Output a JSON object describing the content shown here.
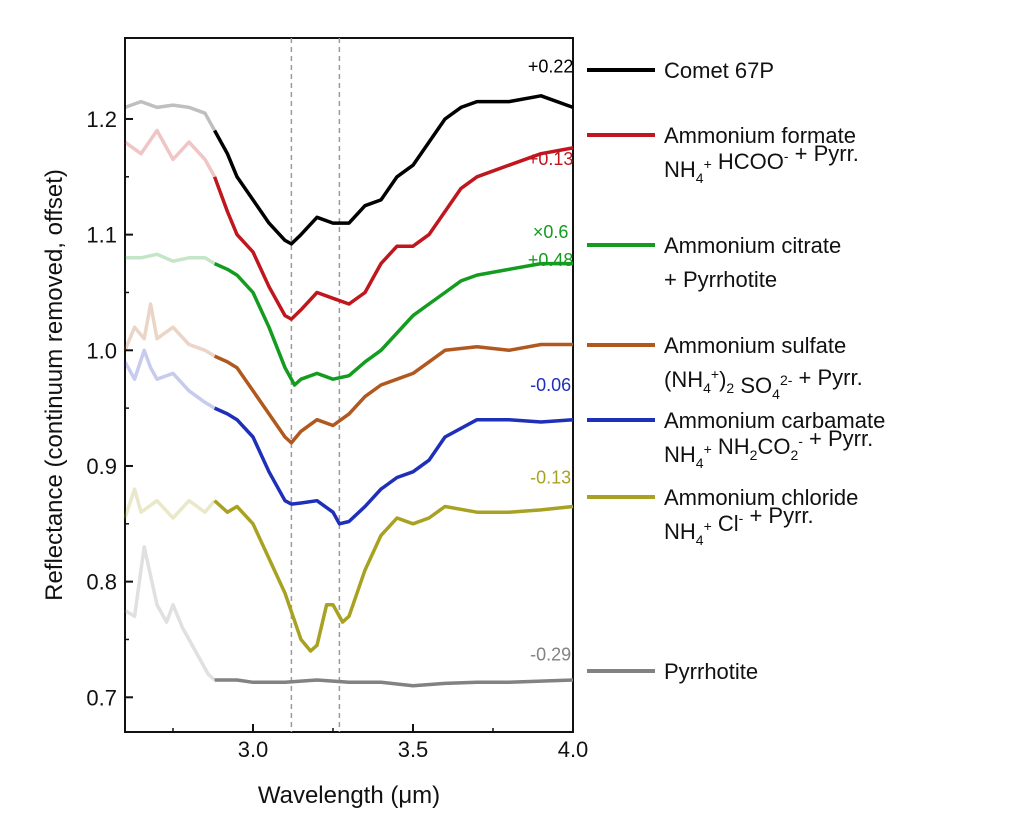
{
  "chart_data": {
    "type": "line",
    "xlabel": "Wavelength (μm)",
    "ylabel": "Reflectance (continuum removed, offset)",
    "xlim": [
      2.6,
      4.0
    ],
    "ylim": [
      0.67,
      1.27
    ],
    "x_ticks": [
      3.0,
      3.5,
      4.0
    ],
    "x_tick_labels": [
      "3.0",
      "3.5",
      "4.0"
    ],
    "y_ticks": [
      0.7,
      0.8,
      0.9,
      1.0,
      1.1,
      1.2
    ],
    "y_tick_labels": [
      "0.7",
      "0.8",
      "0.9",
      "1.0",
      "1.1",
      "1.2"
    ],
    "grid": false,
    "reference_lines_x": [
      3.12,
      3.27
    ],
    "legend_position": "right",
    "series": [
      {
        "name": "Comet 67P",
        "color": "#000000",
        "offset_label": "+0.22",
        "offset_label_xy": [
          3.93,
          1.24
        ],
        "faded_until": 2.88,
        "points": [
          [
            2.6,
            1.21
          ],
          [
            2.65,
            1.215
          ],
          [
            2.7,
            1.21
          ],
          [
            2.75,
            1.212
          ],
          [
            2.8,
            1.21
          ],
          [
            2.85,
            1.205
          ],
          [
            2.88,
            1.19
          ],
          [
            2.92,
            1.17
          ],
          [
            2.95,
            1.15
          ],
          [
            3.0,
            1.13
          ],
          [
            3.05,
            1.11
          ],
          [
            3.1,
            1.095
          ],
          [
            3.12,
            1.092
          ],
          [
            3.15,
            1.1
          ],
          [
            3.2,
            1.115
          ],
          [
            3.25,
            1.11
          ],
          [
            3.3,
            1.11
          ],
          [
            3.35,
            1.125
          ],
          [
            3.4,
            1.13
          ],
          [
            3.45,
            1.15
          ],
          [
            3.5,
            1.16
          ],
          [
            3.55,
            1.18
          ],
          [
            3.6,
            1.2
          ],
          [
            3.65,
            1.21
          ],
          [
            3.7,
            1.215
          ],
          [
            3.8,
            1.215
          ],
          [
            3.9,
            1.22
          ],
          [
            4.0,
            1.21
          ]
        ]
      },
      {
        "name": "Ammonium formate",
        "name_line2": "NH4+ HCOO- + Pyrr.",
        "color": "#c0161d",
        "offset_label": "+0.13",
        "offset_label_xy": [
          3.93,
          1.16
        ],
        "faded_until": 2.88,
        "points": [
          [
            2.6,
            1.18
          ],
          [
            2.65,
            1.17
          ],
          [
            2.7,
            1.19
          ],
          [
            2.75,
            1.165
          ],
          [
            2.8,
            1.18
          ],
          [
            2.85,
            1.165
          ],
          [
            2.88,
            1.15
          ],
          [
            2.92,
            1.12
          ],
          [
            2.95,
            1.1
          ],
          [
            3.0,
            1.085
          ],
          [
            3.05,
            1.055
          ],
          [
            3.1,
            1.03
          ],
          [
            3.12,
            1.027
          ],
          [
            3.15,
            1.035
          ],
          [
            3.2,
            1.05
          ],
          [
            3.25,
            1.045
          ],
          [
            3.3,
            1.04
          ],
          [
            3.35,
            1.05
          ],
          [
            3.4,
            1.075
          ],
          [
            3.45,
            1.09
          ],
          [
            3.5,
            1.09
          ],
          [
            3.55,
            1.1
          ],
          [
            3.6,
            1.12
          ],
          [
            3.65,
            1.14
          ],
          [
            3.7,
            1.15
          ],
          [
            3.8,
            1.16
          ],
          [
            3.9,
            1.17
          ],
          [
            4.0,
            1.175
          ]
        ]
      },
      {
        "name": "Ammonium citrate",
        "name_line2": "+ Pyrrhotite",
        "color": "#139c1f",
        "offset_label": "×0.6",
        "offset_label2": "+0.48",
        "offset_label_xy": [
          3.93,
          1.097
        ],
        "offset_label2_xy": [
          3.93,
          1.073
        ],
        "faded_until": 2.88,
        "points": [
          [
            2.6,
            1.08
          ],
          [
            2.65,
            1.08
          ],
          [
            2.7,
            1.083
          ],
          [
            2.75,
            1.077
          ],
          [
            2.8,
            1.08
          ],
          [
            2.85,
            1.08
          ],
          [
            2.88,
            1.075
          ],
          [
            2.92,
            1.07
          ],
          [
            2.95,
            1.065
          ],
          [
            3.0,
            1.05
          ],
          [
            3.05,
            1.02
          ],
          [
            3.1,
            0.985
          ],
          [
            3.13,
            0.97
          ],
          [
            3.15,
            0.975
          ],
          [
            3.2,
            0.98
          ],
          [
            3.25,
            0.975
          ],
          [
            3.3,
            0.978
          ],
          [
            3.35,
            0.99
          ],
          [
            3.4,
            1.0
          ],
          [
            3.45,
            1.015
          ],
          [
            3.5,
            1.03
          ],
          [
            3.55,
            1.04
          ],
          [
            3.6,
            1.05
          ],
          [
            3.65,
            1.06
          ],
          [
            3.7,
            1.065
          ],
          [
            3.8,
            1.07
          ],
          [
            3.9,
            1.075
          ],
          [
            4.0,
            1.075
          ]
        ]
      },
      {
        "name": "Ammonium sulfate",
        "name_line2": "(NH4+)2 SO42- + Pyrr.",
        "color": "#b1581e",
        "faded_until": 2.88,
        "points": [
          [
            2.6,
            1.0
          ],
          [
            2.63,
            1.02
          ],
          [
            2.66,
            1.01
          ],
          [
            2.68,
            1.04
          ],
          [
            2.7,
            1.01
          ],
          [
            2.75,
            1.02
          ],
          [
            2.8,
            1.005
          ],
          [
            2.85,
            1.0
          ],
          [
            2.88,
            0.995
          ],
          [
            2.92,
            0.99
          ],
          [
            2.95,
            0.985
          ],
          [
            3.0,
            0.965
          ],
          [
            3.05,
            0.945
          ],
          [
            3.1,
            0.925
          ],
          [
            3.12,
            0.92
          ],
          [
            3.15,
            0.93
          ],
          [
            3.2,
            0.94
          ],
          [
            3.25,
            0.935
          ],
          [
            3.3,
            0.945
          ],
          [
            3.35,
            0.96
          ],
          [
            3.4,
            0.97
          ],
          [
            3.45,
            0.975
          ],
          [
            3.5,
            0.98
          ],
          [
            3.55,
            0.99
          ],
          [
            3.6,
            1.0
          ],
          [
            3.7,
            1.003
          ],
          [
            3.8,
            1.0
          ],
          [
            3.9,
            1.005
          ],
          [
            4.0,
            1.005
          ]
        ]
      },
      {
        "name": "Ammonium carbamate",
        "name_line2": "NH4+ NH2CO2- + Pyrr.",
        "color": "#1e2fb8",
        "offset_label": "-0.06",
        "offset_label_xy": [
          3.93,
          0.965
        ],
        "faded_until": 2.88,
        "points": [
          [
            2.6,
            0.99
          ],
          [
            2.63,
            0.975
          ],
          [
            2.66,
            1.0
          ],
          [
            2.68,
            0.985
          ],
          [
            2.7,
            0.975
          ],
          [
            2.75,
            0.98
          ],
          [
            2.8,
            0.965
          ],
          [
            2.85,
            0.955
          ],
          [
            2.88,
            0.95
          ],
          [
            2.92,
            0.945
          ],
          [
            2.95,
            0.94
          ],
          [
            3.0,
            0.925
          ],
          [
            3.05,
            0.895
          ],
          [
            3.1,
            0.87
          ],
          [
            3.12,
            0.867
          ],
          [
            3.15,
            0.868
          ],
          [
            3.2,
            0.87
          ],
          [
            3.25,
            0.86
          ],
          [
            3.27,
            0.85
          ],
          [
            3.3,
            0.852
          ],
          [
            3.35,
            0.865
          ],
          [
            3.4,
            0.88
          ],
          [
            3.45,
            0.89
          ],
          [
            3.5,
            0.895
          ],
          [
            3.55,
            0.905
          ],
          [
            3.6,
            0.925
          ],
          [
            3.7,
            0.94
          ],
          [
            3.8,
            0.94
          ],
          [
            3.9,
            0.938
          ],
          [
            4.0,
            0.94
          ]
        ]
      },
      {
        "name": "Ammonium chloride",
        "name_line2": "NH4+ Cl- + Pyrr.",
        "color": "#a8a222",
        "offset_label": "-0.13",
        "offset_label_xy": [
          3.93,
          0.885
        ],
        "faded_until": 2.88,
        "points": [
          [
            2.6,
            0.855
          ],
          [
            2.63,
            0.88
          ],
          [
            2.65,
            0.86
          ],
          [
            2.7,
            0.87
          ],
          [
            2.75,
            0.855
          ],
          [
            2.8,
            0.87
          ],
          [
            2.85,
            0.86
          ],
          [
            2.88,
            0.87
          ],
          [
            2.92,
            0.86
          ],
          [
            2.95,
            0.865
          ],
          [
            3.0,
            0.85
          ],
          [
            3.05,
            0.82
          ],
          [
            3.1,
            0.79
          ],
          [
            3.15,
            0.75
          ],
          [
            3.18,
            0.74
          ],
          [
            3.2,
            0.745
          ],
          [
            3.23,
            0.78
          ],
          [
            3.25,
            0.78
          ],
          [
            3.28,
            0.765
          ],
          [
            3.3,
            0.77
          ],
          [
            3.35,
            0.81
          ],
          [
            3.4,
            0.84
          ],
          [
            3.45,
            0.855
          ],
          [
            3.5,
            0.85
          ],
          [
            3.55,
            0.855
          ],
          [
            3.6,
            0.865
          ],
          [
            3.7,
            0.86
          ],
          [
            3.8,
            0.86
          ],
          [
            3.9,
            0.862
          ],
          [
            4.0,
            0.865
          ]
        ]
      },
      {
        "name": "Pyrrhotite",
        "color": "#828282",
        "offset_label": "-0.29",
        "offset_label_xy": [
          3.93,
          0.732
        ],
        "faded_until": 2.88,
        "points": [
          [
            2.6,
            0.775
          ],
          [
            2.63,
            0.77
          ],
          [
            2.66,
            0.83
          ],
          [
            2.7,
            0.78
          ],
          [
            2.73,
            0.765
          ],
          [
            2.75,
            0.78
          ],
          [
            2.78,
            0.76
          ],
          [
            2.82,
            0.74
          ],
          [
            2.86,
            0.72
          ],
          [
            2.88,
            0.715
          ],
          [
            2.95,
            0.715
          ],
          [
            3.0,
            0.713
          ],
          [
            3.1,
            0.713
          ],
          [
            3.2,
            0.715
          ],
          [
            3.3,
            0.713
          ],
          [
            3.4,
            0.713
          ],
          [
            3.5,
            0.71
          ],
          [
            3.6,
            0.712
          ],
          [
            3.7,
            0.713
          ],
          [
            3.8,
            0.713
          ],
          [
            3.9,
            0.714
          ],
          [
            4.0,
            0.715
          ]
        ]
      }
    ]
  }
}
